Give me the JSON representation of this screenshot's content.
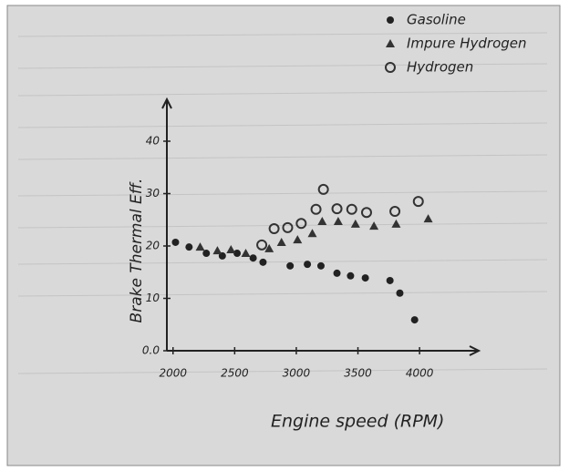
{
  "chart_data": {
    "type": "scatter",
    "x_label": "Engine speed (RPM)",
    "y_label": "Brake Thermal Eff.",
    "xlim": [
      1950,
      4480
    ],
    "ylim": [
      0,
      48
    ],
    "xticks": [
      2000,
      2500,
      3000,
      3500,
      4000
    ],
    "yticks": [
      {
        "value": 0,
        "label": "0.0"
      },
      10,
      20,
      30,
      40
    ],
    "series": [
      {
        "name": "Gasoline",
        "color": "#222222",
        "marker": "dot",
        "x": [
          2020,
          2130,
          2270,
          2400,
          2520,
          2650,
          2730,
          2950,
          3090,
          3200,
          3330,
          3440,
          3560,
          3760,
          3840,
          3960
        ],
        "values": [
          20.7,
          19.8,
          18.6,
          18.1,
          18.6,
          17.7,
          16.9,
          16.2,
          16.5,
          16.2,
          14.8,
          14.3,
          13.9,
          13.4,
          11.0,
          5.9
        ]
      },
      {
        "name": "Impure Hydrogen",
        "color": "#333333",
        "marker": "triangle",
        "x": [
          2220,
          2360,
          2470,
          2590,
          2780,
          2880,
          3010,
          3130,
          3210,
          3340,
          3480,
          3630,
          3810,
          4070
        ],
        "values": [
          19.8,
          19.1,
          19.3,
          18.6,
          19.5,
          20.7,
          21.2,
          22.4,
          24.7,
          24.7,
          24.2,
          23.8,
          24.2,
          25.2
        ]
      },
      {
        "name": "Hydrogen",
        "color": "#333333",
        "marker": "ring",
        "x": [
          2720,
          2820,
          2930,
          3040,
          3160,
          3220,
          3330,
          3450,
          3570,
          3800,
          3990
        ],
        "values": [
          20.2,
          23.3,
          23.5,
          24.3,
          27.0,
          30.8,
          27.1,
          27.0,
          26.4,
          26.6,
          28.5
        ]
      }
    ]
  }
}
